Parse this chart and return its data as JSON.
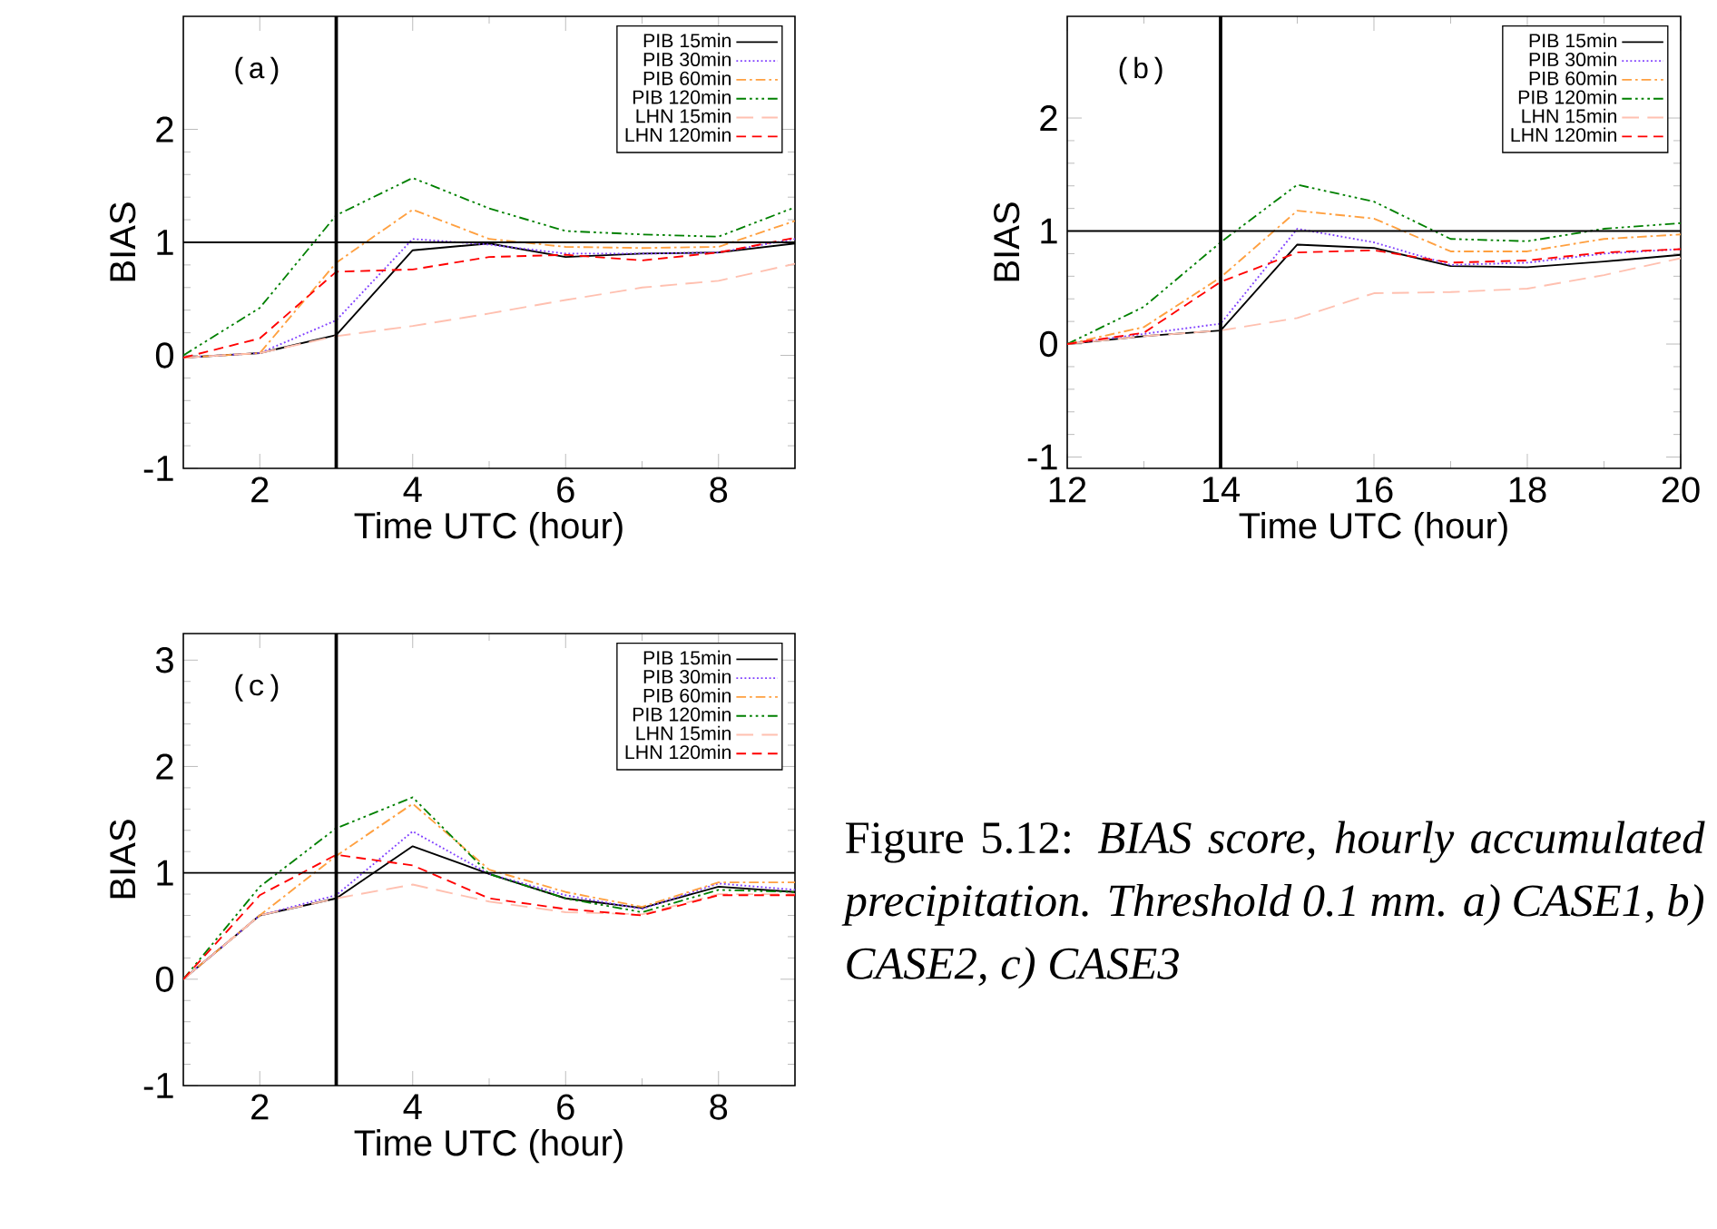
{
  "chart_data": [
    {
      "type": "line",
      "xlabel": "Time UTC (hour)",
      "ylabel": "BIAS",
      "annotations": [
        "(a)"
      ],
      "x": [
        1,
        2,
        3,
        4,
        5,
        6,
        7,
        8,
        9
      ],
      "xlim": [
        1,
        9
      ],
      "xticks": [
        2,
        4,
        6,
        8
      ],
      "ylim": [
        -1,
        3
      ],
      "yticks": [
        -1,
        0,
        1,
        2
      ],
      "legend": "top right",
      "ref_lines": [
        {
          "axis": "y",
          "value": 1,
          "color": "#000000"
        },
        {
          "axis": "x",
          "value": 3,
          "color": "#000000"
        }
      ],
      "series": [
        {
          "name": "PIB 15min",
          "color": "#000000",
          "line_style": "solid",
          "values": [
            -0.02,
            0.02,
            0.18,
            0.93,
            0.99,
            0.87,
            0.9,
            0.91,
            0.99
          ]
        },
        {
          "name": "PIB 30min",
          "color": "#8040ff",
          "line_style": "dotted",
          "values": [
            -0.02,
            0.02,
            0.31,
            1.03,
            0.98,
            0.9,
            0.9,
            0.91,
            1.03
          ]
        },
        {
          "name": "PIB 60min",
          "color": "#ffa040",
          "line_style": "dashdot",
          "values": [
            -0.02,
            0.02,
            0.82,
            1.29,
            1.03,
            0.96,
            0.95,
            0.96,
            1.19
          ]
        },
        {
          "name": "PIB 120min",
          "color": "#008000",
          "line_style": "dashdotdot",
          "values": [
            0.0,
            0.42,
            1.24,
            1.57,
            1.3,
            1.1,
            1.07,
            1.05,
            1.31
          ]
        },
        {
          "name": "LHN 15min",
          "color": "#ffc0b0",
          "line_style": "longdashed",
          "values": [
            -0.02,
            0.02,
            0.17,
            0.26,
            0.37,
            0.49,
            0.6,
            0.66,
            0.81
          ]
        },
        {
          "name": "LHN 120min",
          "color": "#ff0000",
          "line_style": "dashed",
          "values": [
            -0.02,
            0.15,
            0.74,
            0.76,
            0.87,
            0.89,
            0.84,
            0.91,
            1.04
          ]
        }
      ]
    },
    {
      "type": "line",
      "xlabel": "Time UTC (hour)",
      "ylabel": "BIAS",
      "annotations": [
        "(b)"
      ],
      "x": [
        12,
        13,
        14,
        15,
        16,
        17,
        18,
        19,
        20
      ],
      "xlim": [
        12,
        20
      ],
      "xticks": [
        12,
        14,
        16,
        18,
        20
      ],
      "ylim": [
        -1.1,
        2.9
      ],
      "yticks": [
        -1,
        0,
        1,
        2
      ],
      "legend": "top right",
      "ref_lines": [
        {
          "axis": "y",
          "value": 1,
          "color": "#000000"
        },
        {
          "axis": "x",
          "value": 14,
          "color": "#000000"
        }
      ],
      "series": [
        {
          "name": "PIB 15min",
          "color": "#000000",
          "line_style": "solid",
          "values": [
            0.0,
            0.07,
            0.12,
            0.88,
            0.85,
            0.69,
            0.68,
            0.73,
            0.79
          ]
        },
        {
          "name": "PIB 30min",
          "color": "#8040ff",
          "line_style": "dotted",
          "values": [
            0.0,
            0.09,
            0.18,
            1.02,
            0.9,
            0.7,
            0.72,
            0.8,
            0.84
          ]
        },
        {
          "name": "PIB 60min",
          "color": "#ffa040",
          "line_style": "dashdot",
          "values": [
            0.0,
            0.15,
            0.59,
            1.18,
            1.11,
            0.82,
            0.82,
            0.93,
            0.97
          ]
        },
        {
          "name": "PIB 120min",
          "color": "#008000",
          "line_style": "dashdotdot",
          "values": [
            0.0,
            0.33,
            0.9,
            1.41,
            1.26,
            0.93,
            0.91,
            1.02,
            1.07
          ]
        },
        {
          "name": "LHN 15min",
          "color": "#ffc0b0",
          "line_style": "longdashed",
          "values": [
            0.0,
            0.07,
            0.12,
            0.23,
            0.45,
            0.46,
            0.49,
            0.61,
            0.76
          ]
        },
        {
          "name": "LHN 120min",
          "color": "#ff0000",
          "line_style": "dashed",
          "values": [
            0.0,
            0.1,
            0.55,
            0.81,
            0.83,
            0.72,
            0.74,
            0.81,
            0.84
          ]
        }
      ]
    },
    {
      "type": "line",
      "xlabel": "Time UTC (hour)",
      "ylabel": "BIAS",
      "annotations": [
        "(c)",
        "Figure 5.12: *BIAS score, hourly accumulated precipitation. Threshold 0.1 mm. a) CASE1, b) CASE2, c) CASE3*"
      ],
      "x": [
        1,
        2,
        3,
        4,
        5,
        6,
        7,
        8,
        9
      ],
      "xlim": [
        1,
        9
      ],
      "xticks": [
        2,
        4,
        6,
        8
      ],
      "ylim": [
        -1,
        3.25
      ],
      "yticks": [
        -1,
        0,
        1,
        2,
        3
      ],
      "legend": "top right",
      "ref_lines": [
        {
          "axis": "y",
          "value": 1,
          "color": "#000000"
        },
        {
          "axis": "x",
          "value": 3,
          "color": "#000000"
        }
      ],
      "series": [
        {
          "name": "PIB 15min",
          "color": "#000000",
          "line_style": "solid",
          "values": [
            0.0,
            0.6,
            0.76,
            1.25,
            0.99,
            0.76,
            0.67,
            0.87,
            0.82
          ]
        },
        {
          "name": "PIB 30min",
          "color": "#8040ff",
          "line_style": "dotted",
          "values": [
            0.0,
            0.6,
            0.79,
            1.39,
            0.99,
            0.79,
            0.66,
            0.9,
            0.84
          ]
        },
        {
          "name": "PIB 60min",
          "color": "#ffa040",
          "line_style": "dashdot",
          "values": [
            0.0,
            0.6,
            1.16,
            1.65,
            1.03,
            0.82,
            0.68,
            0.91,
            0.91
          ]
        },
        {
          "name": "PIB 120min",
          "color": "#008000",
          "line_style": "dashdotdot",
          "values": [
            0.0,
            0.87,
            1.42,
            1.71,
            0.99,
            0.76,
            0.63,
            0.84,
            0.82
          ]
        },
        {
          "name": "LHN 15min",
          "color": "#ffc0b0",
          "line_style": "longdashed",
          "values": [
            0.0,
            0.6,
            0.76,
            0.89,
            0.73,
            0.63,
            0.61,
            0.8,
            0.8
          ]
        },
        {
          "name": "LHN 120min",
          "color": "#ff0000",
          "line_style": "dashed",
          "values": [
            0.0,
            0.79,
            1.17,
            1.07,
            0.76,
            0.66,
            0.6,
            0.79,
            0.79
          ]
        }
      ]
    }
  ]
}
